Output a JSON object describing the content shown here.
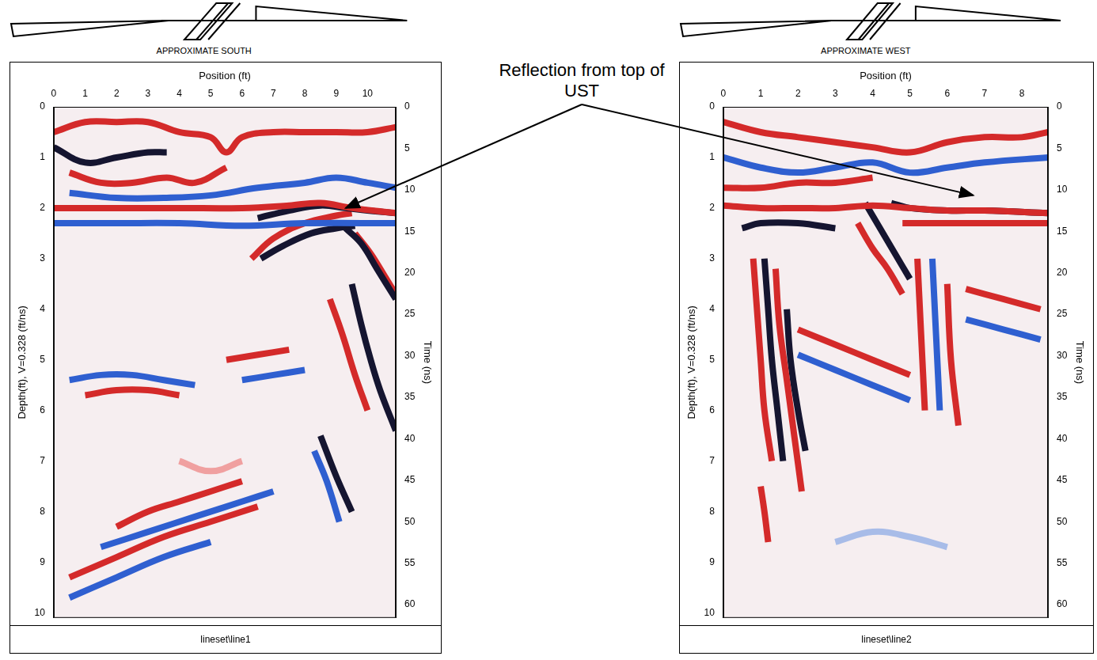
{
  "chart_data": [
    {
      "type": "radargram",
      "title": "APPROXIMATE SOUTH",
      "x_label": "Position (ft)",
      "y_label": "Depth(ft), V=0.328 (ft/ns)",
      "y2_label": "Time (ns)",
      "caption": "lineset\\line1",
      "xlim": [
        0,
        10.9
      ],
      "xticks": [
        0,
        1,
        2,
        3,
        4,
        5,
        6,
        7,
        8,
        9,
        10
      ],
      "ylim": [
        0,
        10.1
      ],
      "yticks": [
        0,
        1,
        2,
        3,
        4,
        5,
        6,
        7,
        8,
        9,
        10
      ],
      "y2lim": [
        0,
        61.6
      ],
      "y2ticks": [
        0,
        5,
        10,
        15,
        20,
        25,
        30,
        35,
        40,
        45,
        50,
        55,
        60
      ],
      "grid": false,
      "series": [
        {
          "color": "#d42a2a",
          "x": [
            0,
            1,
            2,
            3,
            4,
            5,
            5.5,
            6,
            7,
            8,
            9,
            10,
            10.9
          ],
          "values": [
            0.5,
            0.3,
            0.3,
            0.3,
            0.5,
            0.6,
            0.9,
            0.6,
            0.5,
            0.5,
            0.5,
            0.5,
            0.4
          ]
        },
        {
          "color": "#151530",
          "x": [
            0,
            1,
            2,
            3,
            3.6
          ],
          "values": [
            0.8,
            1.1,
            1.0,
            0.9,
            0.9
          ]
        },
        {
          "color": "#d42a2a",
          "x": [
            0.5,
            1.5,
            2.5,
            3.6,
            4.5,
            5.5
          ],
          "values": [
            1.3,
            1.5,
            1.5,
            1.4,
            1.5,
            1.2
          ]
        },
        {
          "color": "#2f5fd0",
          "x": [
            0.5,
            2,
            3.5,
            5,
            6.5,
            8,
            9,
            10,
            10.9
          ],
          "values": [
            1.7,
            1.8,
            1.8,
            1.75,
            1.6,
            1.5,
            1.4,
            1.5,
            1.6
          ]
        },
        {
          "color": "#d42a2a",
          "x": [
            0,
            2,
            4,
            6,
            7.5,
            8.5,
            9.5,
            10.9
          ],
          "values": [
            2.0,
            2.0,
            2.0,
            2.0,
            1.95,
            1.9,
            2.0,
            2.1
          ]
        },
        {
          "color": "#151530",
          "x": [
            6.5,
            7.5,
            8.5,
            9.3,
            10,
            10.9
          ],
          "values": [
            2.2,
            2.05,
            1.95,
            2.0,
            2.05,
            2.1
          ]
        },
        {
          "color": "#2f5fd0",
          "x": [
            0,
            2,
            4,
            6,
            8,
            10.9
          ],
          "values": [
            2.3,
            2.3,
            2.3,
            2.35,
            2.3,
            2.3
          ]
        },
        {
          "color": "#d42a2a",
          "x": [
            6.3,
            7,
            8,
            9,
            9.5
          ],
          "values": [
            3.0,
            2.6,
            2.3,
            2.15,
            2.1
          ]
        },
        {
          "color": "#151530",
          "x": [
            6.6,
            7.3,
            8.2,
            9,
            9.6
          ],
          "values": [
            3.0,
            2.75,
            2.5,
            2.4,
            2.35
          ]
        },
        {
          "color": "#151530",
          "x": [
            9.3,
            9.8,
            10.3,
            10.9
          ],
          "values": [
            2.4,
            2.7,
            3.2,
            3.8
          ]
        },
        {
          "color": "#d42a2a",
          "x": [
            9.6,
            10.1,
            10.6,
            10.9
          ],
          "values": [
            2.5,
            2.9,
            3.4,
            3.7
          ]
        },
        {
          "color": "#151530",
          "x": [
            9.5,
            9.8,
            10.1,
            10.4,
            10.9
          ],
          "values": [
            3.5,
            4.3,
            5.0,
            5.6,
            6.4
          ]
        },
        {
          "color": "#d42a2a",
          "x": [
            8.8,
            9.2,
            9.6,
            10
          ],
          "values": [
            3.8,
            4.5,
            5.3,
            6.0
          ]
        },
        {
          "color": "#2f5fd0",
          "x": [
            8.3,
            8.7,
            9.1
          ],
          "values": [
            6.8,
            7.4,
            8.2
          ]
        },
        {
          "color": "#151530",
          "x": [
            8.5,
            9.0,
            9.5
          ],
          "values": [
            6.5,
            7.3,
            8.0
          ]
        },
        {
          "color": "#2f5fd0",
          "x": [
            0.5,
            1.5,
            2.5,
            3.5,
            4.5
          ],
          "values": [
            5.4,
            5.3,
            5.3,
            5.4,
            5.5
          ]
        },
        {
          "color": "#d42a2a",
          "x": [
            1,
            2,
            3,
            4
          ],
          "values": [
            5.7,
            5.6,
            5.6,
            5.7
          ]
        },
        {
          "color": "#d42a2a",
          "x": [
            2,
            3,
            4,
            5,
            6
          ],
          "values": [
            8.3,
            8.0,
            7.8,
            7.6,
            7.4
          ]
        },
        {
          "color": "#2f5fd0",
          "x": [
            1.5,
            3,
            4.5,
            6,
            7
          ],
          "values": [
            8.7,
            8.4,
            8.1,
            7.8,
            7.6
          ]
        },
        {
          "color": "#d42a2a",
          "x": [
            0.5,
            2,
            3.5,
            5,
            6.5
          ],
          "values": [
            9.3,
            8.9,
            8.5,
            8.2,
            7.9
          ]
        },
        {
          "color": "#2f5fd0",
          "x": [
            0.5,
            2,
            3.5,
            5
          ],
          "values": [
            9.7,
            9.3,
            8.9,
            8.6
          ]
        },
        {
          "color": "#d42a2a",
          "x": [
            5.5,
            6.5,
            7.5
          ],
          "values": [
            5.0,
            4.9,
            4.8
          ]
        },
        {
          "color": "#2f5fd0",
          "x": [
            6,
            7,
            8
          ],
          "values": [
            5.4,
            5.3,
            5.2
          ]
        },
        {
          "color": "#f0a0a0",
          "x": [
            4,
            5,
            6
          ],
          "values": [
            7.0,
            7.2,
            7.0
          ]
        }
      ]
    },
    {
      "type": "radargram",
      "title": "APPROXIMATE WEST",
      "x_label": "Position (ft)",
      "y_label": "Depth(ft), V=0.328 (ft/ns)",
      "y2_label": "Time (ns)",
      "caption": "lineset\\line2",
      "xlim": [
        0,
        8.7
      ],
      "xticks": [
        0,
        1,
        2,
        3,
        4,
        5,
        6,
        7,
        8
      ],
      "ylim": [
        0,
        10.1
      ],
      "yticks": [
        0,
        1,
        2,
        3,
        4,
        5,
        6,
        7,
        8,
        9,
        10
      ],
      "y2lim": [
        0,
        61.6
      ],
      "y2ticks": [
        0,
        5,
        10,
        15,
        20,
        25,
        30,
        35,
        40,
        45,
        50,
        55,
        60
      ],
      "grid": false,
      "series": [
        {
          "color": "#d42a2a",
          "x": [
            0,
            1,
            2,
            3,
            4,
            5,
            6,
            7,
            8,
            8.7
          ],
          "values": [
            0.3,
            0.5,
            0.6,
            0.7,
            0.8,
            0.9,
            0.7,
            0.6,
            0.6,
            0.5
          ]
        },
        {
          "color": "#2f5fd0",
          "x": [
            0,
            1,
            2,
            3,
            4,
            5,
            6,
            7,
            8.7
          ],
          "values": [
            1.0,
            1.2,
            1.3,
            1.2,
            1.1,
            1.3,
            1.2,
            1.1,
            1.0
          ]
        },
        {
          "color": "#d42a2a",
          "x": [
            0,
            1,
            2,
            3,
            4
          ],
          "values": [
            1.6,
            1.6,
            1.5,
            1.5,
            1.4
          ]
        },
        {
          "color": "#d42a2a",
          "x": [
            0,
            1,
            2,
            3,
            4,
            5,
            6,
            7,
            8.7
          ],
          "values": [
            1.95,
            2.0,
            2.0,
            2.0,
            1.95,
            2.0,
            2.05,
            2.05,
            2.1
          ]
        },
        {
          "color": "#151530",
          "x": [
            4.5,
            5,
            6,
            7,
            8.7
          ],
          "values": [
            1.9,
            2.0,
            2.05,
            2.05,
            2.1
          ]
        },
        {
          "color": "#d42a2a",
          "x": [
            4.8,
            6,
            7,
            8.7
          ],
          "values": [
            2.3,
            2.3,
            2.3,
            2.3
          ]
        },
        {
          "color": "#151530",
          "x": [
            0.5,
            1,
            2,
            3
          ],
          "values": [
            2.4,
            2.3,
            2.3,
            2.4
          ]
        },
        {
          "color": "#151530",
          "x": [
            3.8,
            4.2,
            4.6,
            5.0
          ],
          "values": [
            1.9,
            2.4,
            2.9,
            3.4
          ]
        },
        {
          "color": "#d42a2a",
          "x": [
            3.6,
            4.0,
            4.4,
            4.8
          ],
          "values": [
            2.3,
            2.8,
            3.2,
            3.7
          ]
        },
        {
          "color": "#d42a2a",
          "x": [
            0.8,
            0.9,
            1.0,
            1.1,
            1.3
          ],
          "values": [
            3,
            4,
            5,
            6,
            7
          ]
        },
        {
          "color": "#151530",
          "x": [
            1.1,
            1.2,
            1.3,
            1.45,
            1.6
          ],
          "values": [
            3,
            4,
            5,
            6,
            7
          ]
        },
        {
          "color": "#d42a2a",
          "x": [
            1.4,
            1.5,
            1.7,
            1.9,
            2.1
          ],
          "values": [
            3.2,
            4.3,
            5.4,
            6.5,
            7.6
          ]
        },
        {
          "color": "#151530",
          "x": [
            1.7,
            1.8,
            2.0,
            2.2
          ],
          "values": [
            4,
            5,
            6,
            6.8
          ]
        },
        {
          "color": "#d42a2a",
          "x": [
            1.0,
            1.1,
            1.2
          ],
          "values": [
            7.5,
            8.0,
            8.6
          ]
        },
        {
          "color": "#d42a2a",
          "x": [
            2,
            3,
            4,
            5
          ],
          "values": [
            4.4,
            4.7,
            5.0,
            5.3
          ]
        },
        {
          "color": "#2f5fd0",
          "x": [
            2,
            3,
            4,
            5
          ],
          "values": [
            4.9,
            5.2,
            5.5,
            5.8
          ]
        },
        {
          "color": "#d42a2a",
          "x": [
            5.2,
            5.3,
            5.4
          ],
          "values": [
            3,
            4.5,
            6
          ]
        },
        {
          "color": "#2f5fd0",
          "x": [
            5.6,
            5.7,
            5.8
          ],
          "values": [
            3,
            4.5,
            6
          ]
        },
        {
          "color": "#d42a2a",
          "x": [
            6,
            6.1,
            6.3
          ],
          "values": [
            3.5,
            5,
            6.3
          ]
        },
        {
          "color": "#a8bce8",
          "x": [
            3,
            4,
            5,
            6
          ],
          "values": [
            8.6,
            8.4,
            8.5,
            8.7
          ]
        },
        {
          "color": "#d42a2a",
          "x": [
            6.5,
            7.5,
            8.5
          ],
          "values": [
            3.6,
            3.8,
            4.0
          ]
        },
        {
          "color": "#2f5fd0",
          "x": [
            6.5,
            7.5,
            8.5
          ],
          "values": [
            4.2,
            4.4,
            4.6
          ]
        }
      ]
    }
  ],
  "annotation": {
    "text": "Reflection from top of UST",
    "targets": [
      {
        "chart": 0,
        "x": 9.3,
        "y": 2.0
      },
      {
        "chart": 1,
        "x": 6.7,
        "y": 1.75
      }
    ]
  }
}
